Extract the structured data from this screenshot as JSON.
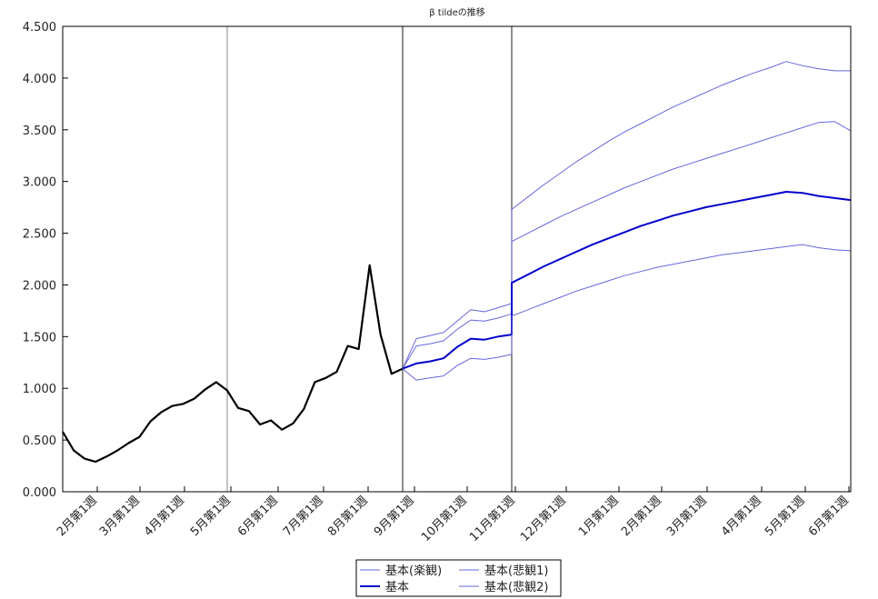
{
  "chart_data": {
    "type": "line",
    "title": "β tildeの推移",
    "xlabel": "",
    "ylabel": "",
    "ylim": [
      0,
      4.5
    ],
    "y_ticks": [
      "0.000",
      "0.500",
      "1.000",
      "1.500",
      "2.000",
      "2.500",
      "3.000",
      "3.500",
      "4.000",
      "4.500"
    ],
    "x_tick_labels": [
      "2月第1週",
      "3月第1週",
      "4月第1週",
      "5月第1週",
      "6月第1週",
      "7月第1週",
      "8月第1週",
      "9月第1週",
      "10月第1週",
      "11月第1週",
      "12月第1週",
      "1月第1週",
      "2月第1週",
      "3月第1週",
      "4月第1週",
      "5月第1週",
      "6月第1週"
    ],
    "grid": false,
    "legend_position": "bottom-center",
    "legend": {
      "items": [
        "基本(楽観)",
        "基本(悲観1)",
        "基本",
        "基本(悲観2)"
      ]
    },
    "colors": {
      "observed": "#000000",
      "forecast_main": "#0000cc",
      "forecast_band": "#6666dd"
    },
    "observed": {
      "values": [
        0.58,
        0.4,
        0.32,
        0.29,
        0.34,
        0.4,
        0.47,
        0.53,
        0.68,
        0.77,
        0.83,
        0.85,
        0.9,
        0.99,
        1.06,
        0.98,
        0.81,
        0.78,
        0.65,
        0.69,
        0.6,
        0.66,
        0.8,
        1.06,
        1.1,
        1.16,
        1.41,
        1.38,
        2.19,
        1.52,
        1.14,
        1.19
      ]
    },
    "series": [
      {
        "name": "基本(楽観)",
        "x": [
          0,
          1,
          2,
          3,
          4,
          5,
          6,
          7,
          8,
          9,
          10,
          11,
          12,
          13,
          14,
          15,
          16,
          17,
          18,
          19,
          20,
          21,
          22,
          23,
          24,
          25,
          26,
          27,
          28,
          29,
          30,
          31,
          32,
          33,
          34,
          35,
          36,
          37,
          38,
          39,
          40,
          41,
          42,
          43,
          44,
          45
        ],
        "values": [
          1.19,
          1.48,
          1.51,
          1.54,
          1.65,
          1.76,
          1.74,
          1.78,
          1.82,
          2.73,
          2.81,
          2.89,
          2.97,
          3.04,
          3.12,
          3.2,
          3.28,
          3.35,
          3.42,
          3.49,
          3.55,
          3.62,
          3.68,
          3.73,
          3.79,
          3.84,
          3.9,
          3.95,
          4.0,
          4.05,
          4.1,
          4.16,
          4.13,
          4.1,
          4.08,
          4.06,
          4.05,
          4.04,
          4.03,
          4.02,
          4.02,
          4.01,
          4.01,
          4.0,
          4.0,
          4.07
        ]
      },
      {
        "name": "基本(悲観1)",
        "values": [
          1.19,
          1.41,
          1.43,
          1.46,
          1.57,
          1.66,
          1.65,
          1.68,
          1.72,
          2.42,
          2.5,
          2.58,
          2.66,
          2.73,
          2.8,
          2.87,
          2.94,
          3.0,
          3.06,
          3.12,
          3.17,
          3.22,
          3.27,
          3.32,
          3.37,
          3.42,
          3.47,
          3.52,
          3.57,
          3.58,
          3.49
        ]
      },
      {
        "name": "基本",
        "values": [
          1.19,
          1.24,
          1.26,
          1.29,
          1.4,
          1.48,
          1.47,
          1.5,
          1.52,
          2.02,
          2.1,
          2.18,
          2.25,
          2.32,
          2.39,
          2.45,
          2.51,
          2.57,
          2.62,
          2.67,
          2.71,
          2.75,
          2.78,
          2.81,
          2.84,
          2.87,
          2.9,
          2.89,
          2.86,
          2.84,
          2.82
        ]
      },
      {
        "name": "基本(悲観2)",
        "values": [
          1.19,
          1.08,
          1.1,
          1.12,
          1.22,
          1.29,
          1.28,
          1.3,
          1.33,
          1.7,
          1.76,
          1.82,
          1.88,
          1.94,
          1.99,
          2.04,
          2.09,
          2.13,
          2.17,
          2.2,
          2.23,
          2.26,
          2.29,
          2.31,
          2.33,
          2.35,
          2.37,
          2.39,
          2.36,
          2.34,
          2.33
        ]
      }
    ]
  }
}
